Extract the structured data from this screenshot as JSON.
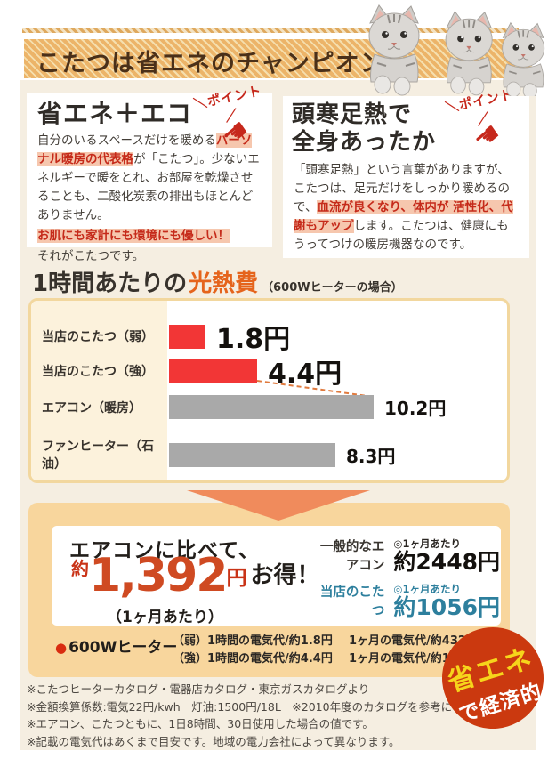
{
  "header": {
    "title": "こたつは省エネのチャンピオン！"
  },
  "point_badge": "＼ポイント／",
  "left_box": {
    "title": "省エネ＋エコ",
    "body_1": "自分のいるスペースだけを暖める",
    "hl_1": "パーソナル暖房の代表格",
    "body_2": "が「こたつ」。少ないエネルギーで暖をとれ、お部屋を乾燥させることも、二酸化炭素の排出もほとんどありません。",
    "hl_2": "お肌にも家計にも環境にも優しい！",
    "body_3": "それがこたつです。"
  },
  "right_box": {
    "title_1": "頭寒足熱で",
    "title_2": "全身あったか",
    "body_1": "「頭寒足熱」という言葉がありますが、こたつは、足元だけをしっかり暖めるので、",
    "hl_1": "血流が良くなり、体内が 活性化、代謝もアップ",
    "body_2": "します。こたつは、健康にもうってつけの暖房機器なのです。"
  },
  "chart_section": {
    "title_1": "1時間あたりの",
    "title_em": "光熱費",
    "title_note": "（600Wヒーターの場合）"
  },
  "chart_data": {
    "type": "bar",
    "orientation": "horizontal",
    "title": "1時間あたりの光熱費（600Wヒーターの場合）",
    "categories": [
      "当店のこたつ（弱）",
      "当店のこたつ（強）",
      "エアコン（暖房）",
      "ファンヒーター（石油）"
    ],
    "values": [
      1.8,
      4.4,
      10.2,
      8.3
    ],
    "value_labels": [
      "1.8円",
      "4.4円",
      "10.2円",
      "8.3円"
    ],
    "unit": "円",
    "xlim": [
      0,
      10.2
    ],
    "bar_colors": [
      "#f23636",
      "#f23636",
      "#a9a9a9",
      "#a9a9a9"
    ],
    "grid": false,
    "legend": false
  },
  "savings": {
    "compare_lead": "エアコンに比べて、",
    "approx": "約",
    "amount": "1,392",
    "yen": "円",
    "otoku": "お得！",
    "per_month_paren": "（1ヶ月あたり）",
    "rows": [
      {
        "label": "一般的なエアコン",
        "per": "◎1ヶ月あたり",
        "price": "約2448円"
      },
      {
        "label": "当店のこたつ",
        "per": "◎1ヶ月あたり",
        "price": "約1056円"
      }
    ],
    "heater_bullet": "●",
    "heater_label": "600Wヒーター",
    "detail_rows": [
      {
        "left": "（弱）1時間の電気代/約1.8円",
        "right": "1ヶ月の電気代/約432円"
      },
      {
        "left": "（強）1時間の電気代/約4.4円",
        "right": "1ヶ月の電気代/約1056円"
      }
    ],
    "badge_line1": "省エネ",
    "badge_line2": "で経済的"
  },
  "footnotes": [
    "※こたつヒーターカタログ・電器店カタログ・東京ガスカタログより",
    "※金額換算係数:電気22円/kwh　灯油:1500円/18L　※2010年度のカタログを参考にしています。",
    "※エアコン、こたつともに、1日8時間、30日使用した場合の値です。",
    "※記載の電気代はあくまで目安です。地域の電力会社によって異なります。"
  ],
  "colors": {
    "page_background": "#f5eee1",
    "header_stripe": "#ecb469",
    "header_text": "#4a3019",
    "highlight_bg": "#f6c7ae",
    "highlight_red": "#c52a1a",
    "accent_orange": "#e5641c",
    "bar_red": "#f23636",
    "bar_gray": "#a9a9a9",
    "arrow_orange": "#f08b5c",
    "savings_box_bg": "#f8d69d",
    "big_number_red": "#cf4a22",
    "teal": "#2d7f9d",
    "badge_red": "#cb390f",
    "badge_yellow": "#f6d51b"
  }
}
